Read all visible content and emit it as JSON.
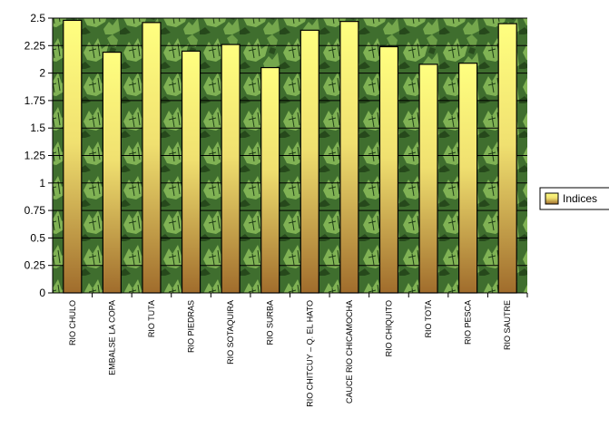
{
  "chart_data": {
    "type": "bar",
    "categories": [
      "RIO CHULO",
      "EMBALSE LA COPA",
      "RIO TUTA",
      "RIO PIEDRAS",
      "RIO SOTAQUIRA",
      "RIO SURBA",
      "RIO CHITCUY – Q. EL HATO",
      "CAUCE RIO CHICAMOCHA",
      "RIO CHIQUITO",
      "RIO TOTA",
      "RIO PESCA",
      "RIO SAUTRE"
    ],
    "series": [
      {
        "name": "Indices",
        "values": [
          2.48,
          2.19,
          2.46,
          2.2,
          2.26,
          2.05,
          2.39,
          2.47,
          2.24,
          2.08,
          2.09,
          2.45
        ]
      }
    ],
    "yticks": [
      "0",
      "0.25",
      "0.5",
      "0.75",
      "1",
      "1.25",
      "1.5",
      "1.75",
      "2",
      "2.25",
      "2.5"
    ],
    "ylim": [
      0,
      2.5
    ],
    "grid": true,
    "legend": "right",
    "colors": {
      "bar_top": "#ffff80",
      "bar_bottom": "#a06c2c",
      "bar_outline": "#000000",
      "plot_bg": "#3f6e2e",
      "leaf_light": "#8cbf5a",
      "leaf_dark": "#1f3e16",
      "grid": "#000000"
    }
  }
}
